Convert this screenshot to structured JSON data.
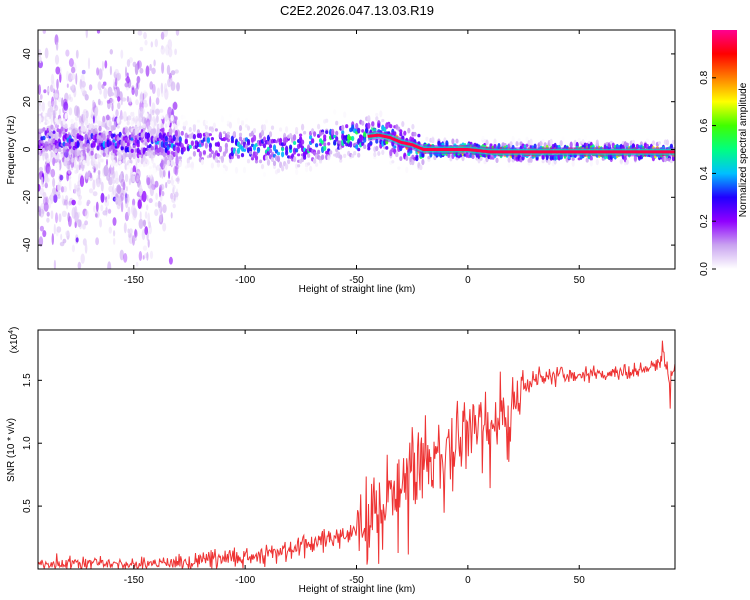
{
  "figure_title": "C2E2.2026.047.13.03.R19",
  "chart_data": [
    {
      "type": "heatmap",
      "xlabel": "Height of straight line (km)",
      "ylabel": "Frequency (Hz)",
      "xlim": [
        -193,
        93
      ],
      "ylim": [
        -50,
        50
      ],
      "xticks": [
        -150,
        -100,
        -50,
        0,
        50
      ],
      "yticks": [
        -40,
        -20,
        0,
        20,
        40
      ],
      "colorbar": {
        "label": "Normalized spectral amplitude",
        "range": [
          0,
          1
        ],
        "ticks": [
          0.0,
          0.2,
          0.4,
          0.6,
          0.8
        ],
        "stops": [
          "#ffffff",
          "#c9a3f0",
          "#9000ff",
          "#2000ff",
          "#00c0ff",
          "#00ff80",
          "#40ff00",
          "#ffff00",
          "#ff8000",
          "#ff0000",
          "#ff0090"
        ]
      },
      "ridge_frequency_hz": [
        [
          -190,
          4
        ],
        [
          -160,
          3
        ],
        [
          -130,
          2
        ],
        [
          -110,
          2
        ],
        [
          -90,
          1
        ],
        [
          -80,
          0
        ],
        [
          -70,
          2
        ],
        [
          -60,
          4
        ],
        [
          -50,
          5
        ],
        [
          -40,
          6
        ],
        [
          -35,
          5
        ],
        [
          -30,
          3
        ],
        [
          -25,
          2
        ],
        [
          -20,
          0
        ],
        [
          -10,
          0
        ],
        [
          0,
          0
        ],
        [
          10,
          -1
        ],
        [
          20,
          -1
        ],
        [
          50,
          -1
        ],
        [
          93,
          -1
        ]
      ],
      "ridge_amplitude": [
        [
          -190,
          0.35
        ],
        [
          -130,
          0.45
        ],
        [
          -100,
          0.5
        ],
        [
          -80,
          0.55
        ],
        [
          -60,
          0.6
        ],
        [
          -50,
          0.65
        ],
        [
          -40,
          0.75
        ],
        [
          -30,
          0.85
        ],
        [
          -20,
          0.95
        ],
        [
          0,
          0.95
        ],
        [
          50,
          0.95
        ],
        [
          93,
          0.95
        ]
      ],
      "noise_region_km": [
        -193,
        -130
      ]
    },
    {
      "type": "line",
      "xlabel": "Height of straight line (km)",
      "ylabel": "SNR (10 * v/v)",
      "y_multiplier": "(x10",
      "y_multiplier_exp": "4",
      "y_multiplier_close": ")",
      "xlim": [
        -193,
        93
      ],
      "ylim": [
        0,
        1.9
      ],
      "xticks": [
        -150,
        -100,
        -50,
        0,
        50
      ],
      "yticks": [
        0.5,
        1.0,
        1.5
      ],
      "ytick_labels": [
        "0.5",
        "1.0",
        "1.5"
      ],
      "color": "#ee3333",
      "series": [
        {
          "name": "SNR",
          "x": [
            -193,
            -180,
            -170,
            -160,
            -150,
            -140,
            -130,
            -120,
            -110,
            -100,
            -90,
            -80,
            -70,
            -60,
            -50,
            -45,
            -40,
            -35,
            -30,
            -25,
            -20,
            -15,
            -10,
            -5,
            0,
            5,
            10,
            15,
            20,
            25,
            30,
            40,
            50,
            60,
            70,
            80,
            85,
            88,
            90,
            93
          ],
          "y": [
            0.03,
            0.04,
            0.05,
            0.04,
            0.03,
            0.04,
            0.05,
            0.06,
            0.08,
            0.1,
            0.12,
            0.15,
            0.2,
            0.25,
            0.3,
            0.4,
            0.5,
            0.6,
            0.7,
            0.8,
            0.85,
            0.9,
            0.95,
            1.0,
            1.05,
            1.1,
            1.15,
            1.25,
            1.35,
            1.45,
            1.5,
            1.55,
            1.55,
            1.56,
            1.57,
            1.58,
            1.62,
            1.7,
            1.5,
            1.6
          ]
        }
      ]
    }
  ]
}
